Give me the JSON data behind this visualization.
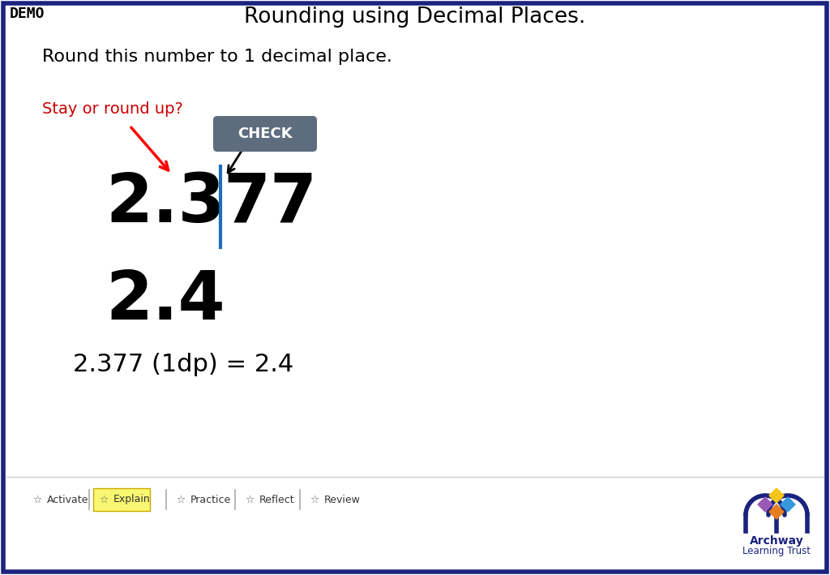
{
  "title": "Rounding using Decimal Places.",
  "demo_label": "DEMO",
  "subtitle": "Round this number to 1 decimal place.",
  "stay_or_round": "Stay or round up?",
  "number_left": "2.3",
  "number_right": "77",
  "result_number": "2.4",
  "equation": "2.377 (1dp) = 2.4",
  "check_label": "CHECK",
  "bg_color": "#ffffff",
  "border_color": "#1a237e",
  "title_color": "#000000",
  "demo_color": "#000000",
  "subtitle_color": "#000000",
  "stay_color": "#cc0000",
  "number_color": "#000000",
  "result_color": "#000000",
  "equation_color": "#000000",
  "blue_line_color": "#1e6eb5",
  "check_bg_color": "#5d6d7e",
  "check_text_color": "#ffffff",
  "nav_items": [
    "Activate",
    "Explain",
    "Practice",
    "Reflect",
    "Review"
  ],
  "nav_highlight": "Explain",
  "nav_highlight_color": "#f9f772",
  "archway_colors": {
    "arch": "#1a237e",
    "diamond_top": "#f5c518",
    "diamond_left": "#9b59b6",
    "diamond_right": "#3498db",
    "diamond_center": "#e67e22"
  },
  "number_fontsize": 60,
  "result_fontsize": 60,
  "equation_fontsize": 22,
  "title_fontsize": 19,
  "subtitle_fontsize": 16,
  "demo_fontsize": 13
}
